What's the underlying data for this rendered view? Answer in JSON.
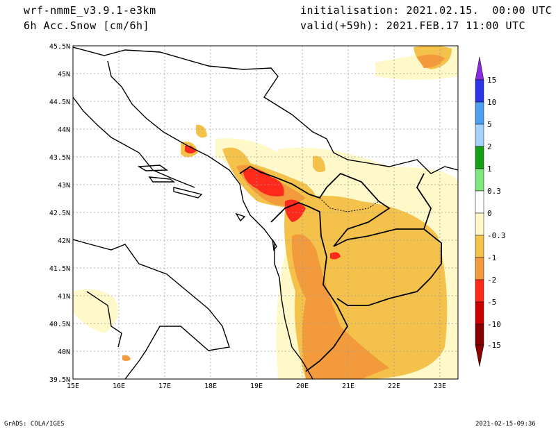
{
  "header": {
    "model": "wrf-nmmE_v3.9.1-e3km",
    "field": "6h Acc.Snow [cm/6h]",
    "init": "initialisation: 2021.02.15.  00:00 UTC",
    "valid": "valid(+59h): 2021.FEB.17 11:00 UTC"
  },
  "footer": {
    "left": "GrADS: COLA/IGES",
    "right": "2021-02-15-09:36"
  },
  "map": {
    "lat_labels": [
      "45.5N",
      "45N",
      "44.5N",
      "44N",
      "43.5N",
      "43N",
      "42.5N",
      "42N",
      "41.5N",
      "41N",
      "40.5N",
      "40N",
      "39.5N"
    ],
    "lon_labels": [
      "15E",
      "16E",
      "17E",
      "18E",
      "19E",
      "20E",
      "21E",
      "22E",
      "23E"
    ]
  },
  "legend": {
    "labels": [
      "15",
      "10",
      "5",
      "2",
      "1",
      "0.3",
      "0",
      "-0.3",
      "-1",
      "-2",
      "-5",
      "-10",
      "-15"
    ],
    "colors": [
      "#8a2be2",
      "#2c36e6",
      "#4fa0f0",
      "#a6d2fa",
      "#14a014",
      "#7ee87e",
      "#ffffff",
      "#fff8c8",
      "#f4c24a",
      "#f39a3c",
      "#ff2a1c",
      "#cc0000",
      "#880000"
    ]
  }
}
